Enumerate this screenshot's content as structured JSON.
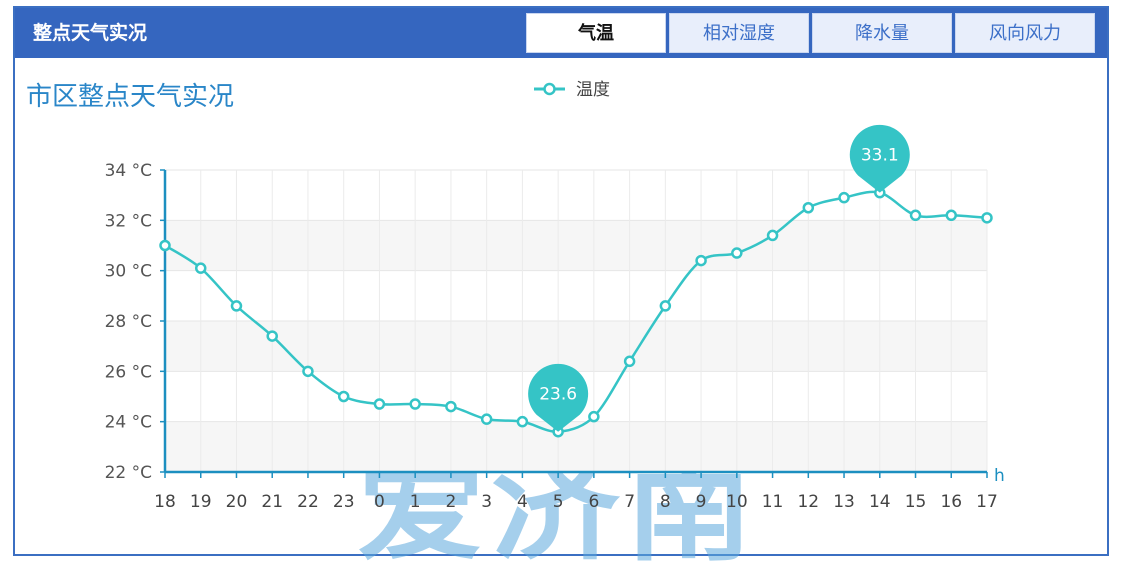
{
  "header": {
    "title": "整点天气实况",
    "tabs": [
      {
        "label": "气温",
        "active": true
      },
      {
        "label": "相对湿度",
        "active": false
      },
      {
        "label": "降水量",
        "active": false
      },
      {
        "label": "风向风力",
        "active": false
      }
    ]
  },
  "colors": {
    "header_bg": "#3566bf",
    "series": "#35c4c6",
    "axis": "#1c8fc0",
    "title": "#2a86c8"
  },
  "watermark": "爱济南",
  "chart_data": {
    "type": "line",
    "title": "市区整点天气实况",
    "x_unit": "h",
    "y_unit": "°C",
    "x": [
      "18",
      "19",
      "20",
      "21",
      "22",
      "23",
      "0",
      "1",
      "2",
      "3",
      "4",
      "5",
      "6",
      "7",
      "8",
      "9",
      "10",
      "11",
      "12",
      "13",
      "14",
      "15",
      "16",
      "17"
    ],
    "series": [
      {
        "name": "温度",
        "values": [
          31.0,
          30.1,
          28.6,
          27.4,
          26.0,
          25.0,
          24.7,
          24.7,
          24.6,
          24.1,
          24.0,
          23.6,
          24.2,
          26.4,
          28.6,
          30.4,
          30.7,
          31.4,
          32.5,
          32.9,
          33.1,
          32.2,
          32.2,
          32.1
        ]
      }
    ],
    "ylim": [
      22,
      34
    ],
    "yticks": [
      22,
      24,
      26,
      28,
      30,
      32,
      34
    ],
    "ytick_labels": [
      "22 °C",
      "24 °C",
      "26 °C",
      "28 °C",
      "30 °C",
      "32 °C",
      "34 °C"
    ],
    "markers": [
      {
        "label": "23.6",
        "x": "5",
        "value": 23.6
      },
      {
        "label": "33.1",
        "x": "14",
        "value": 33.1
      }
    ],
    "legend": "top-center",
    "grid": true
  }
}
